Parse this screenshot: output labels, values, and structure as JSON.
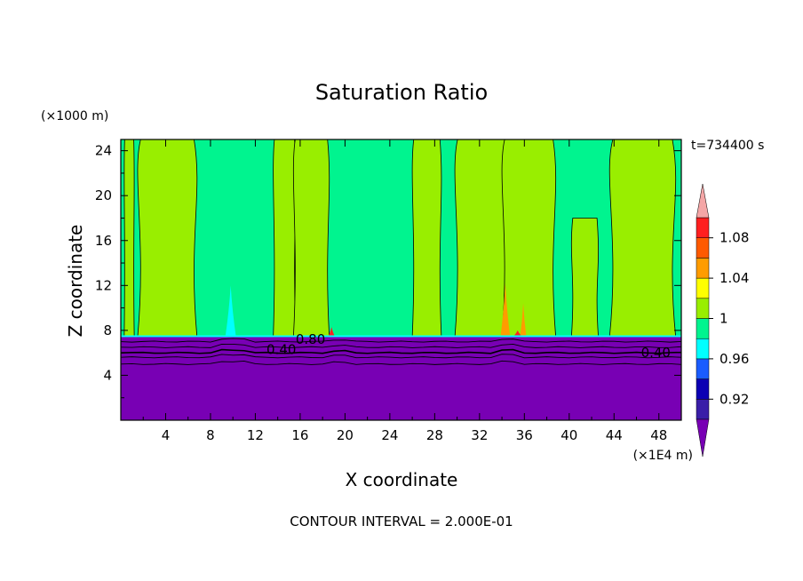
{
  "chart_data": {
    "type": "heatmap",
    "title": "Saturation Ratio",
    "xlabel": "X coordinate",
    "ylabel": "Z coordinate",
    "x_units": "(×1E4 m)",
    "y_units": "(×1000 m)",
    "time_label": "t=734400 s",
    "footer": "CONTOUR INTERVAL = 2.000E-01",
    "xlim": [
      0,
      50
    ],
    "ylim": [
      0,
      25
    ],
    "x_ticks": [
      "4",
      "8",
      "12",
      "16",
      "20",
      "24",
      "28",
      "32",
      "36",
      "40",
      "44",
      "48"
    ],
    "x_tick_values": [
      4,
      8,
      12,
      16,
      20,
      24,
      28,
      32,
      36,
      40,
      44,
      48
    ],
    "y_ticks": [
      "4",
      "8",
      "12",
      "16",
      "20",
      "24"
    ],
    "y_tick_values": [
      4,
      8,
      12,
      16,
      20,
      24
    ],
    "colorbar": {
      "levels": [
        0.9,
        0.92,
        0.94,
        0.96,
        0.98,
        1.0,
        1.02,
        1.04,
        1.06,
        1.08,
        1.1
      ],
      "tick_labels": [
        "0.92",
        "0.96",
        "1",
        "1.04",
        "1.08"
      ],
      "tick_values": [
        0.92,
        0.96,
        1.0,
        1.04,
        1.08
      ],
      "colors": [
        "#3a1ea8",
        "#0c00b4",
        "#1a5cff",
        "#00ffff",
        "#00f48f",
        "#99ee00",
        "#ffff00",
        "#ff9c00",
        "#ff5a00",
        "#ff2020"
      ],
      "under_color": "#7800b4",
      "over_color": "#f4a6a6"
    },
    "surface_height": 7.4,
    "background_layers": {
      "below_surface": "#7800b4",
      "above_surface": "#00f48f"
    },
    "bands_ratio_1_00_to_1_02": [
      {
        "x0": 0.3,
        "x1": 1.2,
        "z0": 7.4,
        "z1": 25
      },
      {
        "x0": 1.5,
        "x1": 6.8,
        "z0": 7.4,
        "z1": 25
      },
      {
        "x0": 13.6,
        "x1": 15.6,
        "z0": 7.4,
        "z1": 25
      },
      {
        "x0": 15.4,
        "x1": 18.6,
        "z0": 7.4,
        "z1": 25
      },
      {
        "x0": 26.0,
        "x1": 28.6,
        "z0": 7.4,
        "z1": 25
      },
      {
        "x0": 29.8,
        "x1": 34.6,
        "z0": 7.4,
        "z1": 25
      },
      {
        "x0": 34.0,
        "x1": 38.8,
        "z0": 7.4,
        "z1": 25
      },
      {
        "x0": 43.6,
        "x1": 49.5,
        "z0": 7.4,
        "z1": 25
      },
      {
        "x0": 40.2,
        "x1": 42.6,
        "z0": 7.4,
        "z1": 18.0
      }
    ],
    "features": [
      {
        "value": 0.96,
        "x": 9.8,
        "z_top": 12.0,
        "width": 1.0
      },
      {
        "value": 1.04,
        "x": 34.3,
        "z_top": 12.2,
        "width": 0.9
      },
      {
        "value": 1.04,
        "x": 35.9,
        "z_top": 10.4,
        "width": 0.6
      },
      {
        "value": 1.08,
        "x": 18.8,
        "z_top": 8.3,
        "width": 0.8
      },
      {
        "value": 1.08,
        "x": 35.4,
        "z_top": 8.0,
        "width": 1.2
      }
    ],
    "contour_labels": [
      {
        "text": "0.80",
        "x": 15.6,
        "z": 7.2
      },
      {
        "text": "0.40",
        "x": 13.0,
        "z": 6.3
      },
      {
        "text": "0.40",
        "x": 46.4,
        "z": 6.0
      }
    ],
    "subsurface_contours_z": [
      7.0,
      6.5,
      6.0,
      5.6,
      5.0
    ]
  }
}
